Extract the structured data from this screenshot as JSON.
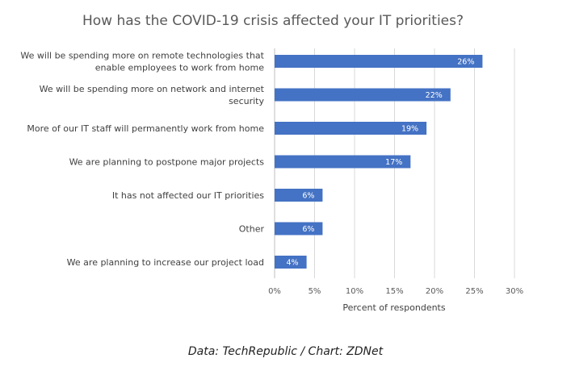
{
  "chart_data": {
    "type": "bar",
    "orientation": "horizontal",
    "title": "How has the COVID-19 crisis affected your IT priorities?",
    "xlabel": "Percent of respondents",
    "ylabel": "",
    "xlim": [
      0,
      30
    ],
    "x_ticks": [
      "0%",
      "5%",
      "10%",
      "15%",
      "20%",
      "25%",
      "30%"
    ],
    "grid": true,
    "categories": [
      [
        "We will be spending more on remote technologies that",
        "enable employees to work from home"
      ],
      [
        "We will be spending more on network and internet",
        "security"
      ],
      [
        "More of our IT staff will permanently work from home"
      ],
      [
        "We are planning to postpone major projects"
      ],
      [
        "It has not affected our IT priorities"
      ],
      [
        "Other"
      ],
      [
        "We are planning to increase our project load"
      ]
    ],
    "values": [
      26,
      22,
      19,
      17,
      6,
      6,
      4
    ],
    "data_labels": [
      "26%",
      "22%",
      "19%",
      "17%",
      "6%",
      "6%",
      "4%"
    ],
    "bar_color": "#4472c4"
  },
  "source_note": "Data: TechRepublic / Chart: ZDNet"
}
